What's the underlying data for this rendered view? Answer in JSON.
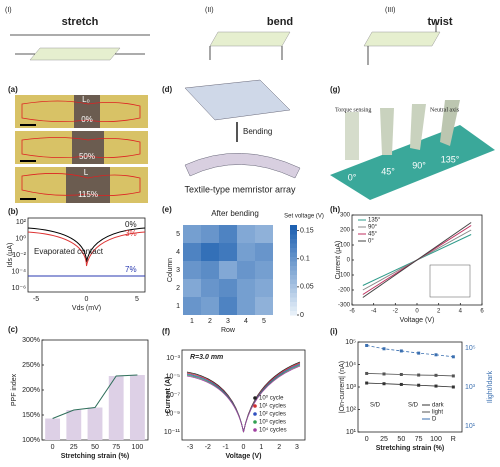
{
  "sections": [
    {
      "label": "(I)",
      "title": "stretch"
    },
    {
      "label": "(II)",
      "title": "bend"
    },
    {
      "label": "(III)",
      "title": "twist"
    }
  ],
  "a": {
    "label": "(a)",
    "annotations": [
      "L₀",
      "0%",
      "50%",
      "L",
      "115%"
    ]
  },
  "b": {
    "label": "(b)",
    "yticks": [
      "10²",
      "10⁰",
      "10⁻²",
      "10⁻⁴",
      "10⁻⁶"
    ],
    "xticks": [
      "-5",
      "0",
      "5"
    ],
    "ylabel": "Ids (μA)",
    "xlabel": "Vds (mV)",
    "curve_labels": [
      "0%",
      "3%",
      "7%"
    ],
    "annotation": "Evaporated contact"
  },
  "c": {
    "label": "(c)",
    "categories": [
      "0",
      "25",
      "50",
      "75",
      "100"
    ],
    "values": [
      143,
      160,
      165,
      228,
      230
    ],
    "ylim": [
      100,
      300
    ],
    "yticks": [
      {
        "value": 100,
        "label": "100%"
      },
      {
        "value": 150,
        "label": "150%"
      },
      {
        "value": 200,
        "label": "200%"
      },
      {
        "value": 250,
        "label": "250%"
      },
      {
        "value": 300,
        "label": "300%"
      }
    ],
    "ylabel": "PPF index",
    "xlabel": "Stretching strain (%)",
    "color": "#ddd0e6",
    "line_color": "#2e6e5a"
  },
  "d": {
    "label": "(d)",
    "arrow_label": "Bending",
    "caption": "Textile-type memristor array"
  },
  "e": {
    "label": "(e)",
    "title": "After bending",
    "colorbar_title": "Set voltage (V)",
    "clim": [
      0,
      0.16
    ],
    "colorbar_ticks": [
      0,
      0.05,
      0.1,
      0.15
    ],
    "xlabel": "Row",
    "ylabel": "Column",
    "rows": [
      "1",
      "2",
      "3",
      "4",
      "5"
    ],
    "columns": [
      "1",
      "2",
      "3",
      "4",
      "5"
    ],
    "values": [
      [
        0.09,
        0.1,
        0.12,
        0.08,
        0.07
      ],
      [
        0.12,
        0.14,
        0.13,
        0.09,
        0.1
      ],
      [
        0.1,
        0.11,
        0.08,
        0.1,
        0.09
      ],
      [
        0.08,
        0.1,
        0.11,
        0.09,
        0.08
      ],
      [
        0.1,
        0.09,
        0.12,
        0.09,
        0.07
      ]
    ]
  },
  "f": {
    "label": "(f)",
    "annotation": "R=3.0 mm",
    "series": [
      {
        "name": "10⁰ cycle",
        "color": "#222"
      },
      {
        "name": "10¹ cycles",
        "color": "#d03030"
      },
      {
        "name": "10² cycles",
        "color": "#3050c0"
      },
      {
        "name": "10³ cycles",
        "color": "#30a050"
      },
      {
        "name": "10⁴ cycles",
        "color": "#a040a0"
      }
    ],
    "xticks": [
      "-3",
      "-2",
      "-1",
      "0",
      "1",
      "2",
      "3"
    ],
    "yticks": [
      "10⁻³",
      "10⁻⁵",
      "10⁻⁷",
      "10⁻⁹",
      "10⁻¹¹"
    ],
    "ylabel": "Current (A)",
    "xlabel": "Voltage (V)"
  },
  "g": {
    "label": "(g)",
    "annotations": [
      "Torque sensing",
      "Neutral axis"
    ],
    "angles": [
      "0°",
      "45°",
      "90°",
      "135°"
    ]
  },
  "h": {
    "label": "(h)",
    "x": [
      -5,
      5
    ],
    "series": [
      {
        "name": "135°",
        "color": "#2e9b8a",
        "values": [
          -170,
          170
        ]
      },
      {
        "name": "90°",
        "color": "#888888",
        "values": [
          -200,
          200
        ]
      },
      {
        "name": "45°",
        "color": "#c03060",
        "values": [
          -230,
          230
        ]
      },
      {
        "name": "0°",
        "color": "#444444",
        "values": [
          -250,
          250
        ]
      }
    ],
    "xlim": [
      -6,
      6
    ],
    "xticks": [
      -6,
      -4,
      -2,
      0,
      2,
      4,
      6
    ],
    "ylim": [
      -300,
      300
    ],
    "yticks": [
      -300,
      -200,
      -100,
      0,
      100,
      200,
      300
    ],
    "xlabel": "Voltage (V)",
    "ylabel": "Current (μA)"
  },
  "i": {
    "label": "(i)",
    "categories": [
      "0",
      "25",
      "50",
      "75",
      "100",
      "R"
    ],
    "log_scale": true,
    "ylim": [
      10,
      100000
    ],
    "yticks": [
      {
        "value": 10,
        "label": "10¹"
      },
      {
        "value": 100,
        "label": "10²"
      },
      {
        "value": 1000,
        "label": "10³"
      },
      {
        "value": 10000,
        "label": "10⁴"
      },
      {
        "value": 100000,
        "label": "10⁵"
      }
    ],
    "y2ticks": [
      "10⁵",
      "10³",
      "10¹"
    ],
    "series": [
      {
        "name": "dark",
        "color": "#333",
        "values": [
          1500,
          1400,
          1300,
          1200,
          1100,
          1000
        ]
      },
      {
        "name": "light",
        "color": "#555",
        "values": [
          4000,
          3800,
          3600,
          3400,
          3300,
          3100
        ]
      },
      {
        "name": "D",
        "color": "#3a6fb0",
        "values": [
          70000,
          50000,
          40000,
          32000,
          27000,
          22000
        ]
      }
    ],
    "sd_label": "S/D",
    "ylabel": "|On-current| (nA)",
    "y2label": "Ilight/Idark",
    "xlabel": "Stretching strain (%)"
  }
}
